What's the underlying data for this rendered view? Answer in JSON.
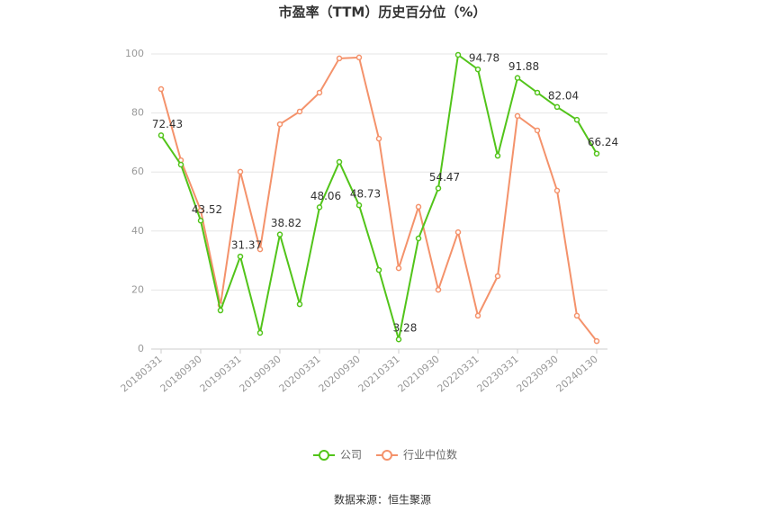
{
  "chart_data": {
    "type": "line",
    "title": "市盈率（TTM）历史百分位（%）",
    "source": "数据来源：恒生聚源",
    "categories": [
      "20180331",
      null,
      "20180930",
      null,
      "20190331",
      null,
      "20190930",
      null,
      "20200331",
      null,
      "20200930",
      null,
      "20210331",
      null,
      "20210930",
      null,
      "20220331",
      null,
      "20230331",
      null,
      "20230930",
      null,
      "20240130"
    ],
    "series": [
      {
        "name": "公司",
        "color": "#52c41a",
        "values": [
          72.43,
          62.5,
          43.52,
          13.1,
          31.37,
          5.5,
          38.82,
          15.2,
          48.06,
          63.4,
          48.73,
          26.8,
          3.28,
          37.5,
          54.47,
          99.7,
          94.78,
          65.5,
          91.88,
          86.9,
          82.04,
          77.7,
          66.24
        ],
        "value_labels": [
          "72.43",
          null,
          "43.52",
          null,
          "31.37",
          null,
          "38.82",
          null,
          "48.06",
          null,
          "48.73",
          null,
          "3.28",
          null,
          "54.47",
          null,
          "94.78",
          null,
          "91.88",
          null,
          "82.04",
          null,
          "66.24"
        ]
      },
      {
        "name": "行业中位数",
        "color": "#f4926b",
        "values": [
          88.1,
          64.0,
          47.0,
          14.9,
          60.1,
          33.8,
          76.2,
          80.5,
          86.9,
          98.5,
          98.8,
          71.3,
          27.4,
          48.2,
          20.1,
          39.6,
          11.3,
          24.7,
          79.0,
          74.1,
          53.7,
          11.3,
          2.7
        ]
      }
    ],
    "ylim": [
      0,
      100
    ],
    "yticks": [
      0,
      20,
      40,
      60,
      80,
      100
    ],
    "grid": true,
    "legend": "bottom"
  }
}
